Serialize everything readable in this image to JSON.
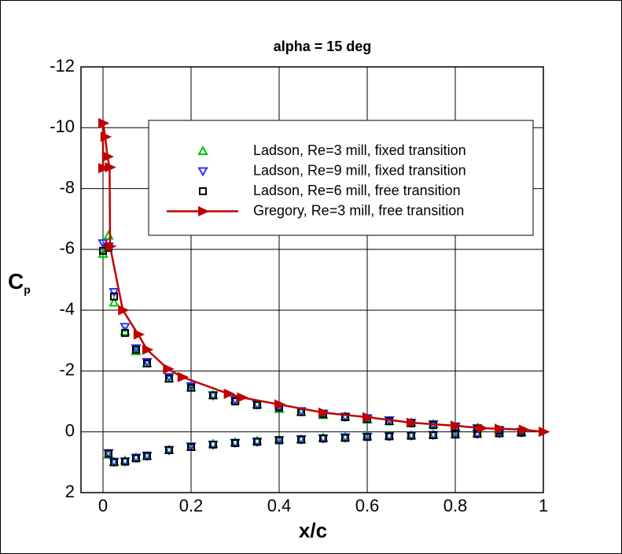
{
  "chart_data": {
    "type": "scatter",
    "title": "alpha = 15 deg",
    "xlabel": "x/c",
    "ylabel": {
      "main": "C",
      "sub": "p"
    },
    "xlim": [
      -0.05,
      1.0
    ],
    "xticks": [
      0,
      0.2,
      0.4,
      0.6,
      0.8,
      1
    ],
    "ylim": [
      -12,
      2
    ],
    "y_reversed": true,
    "yticks": [
      -12,
      -10,
      -8,
      -6,
      -4,
      -2,
      0,
      2
    ],
    "grid": true,
    "legend": "upper right",
    "series": [
      {
        "name": "Ladson, Re=3 mill, fixed transition",
        "color": "#00c000",
        "marker": "triangle-up",
        "style": "markers",
        "x": [
          0,
          0.0125,
          0.025,
          0.05,
          0.075,
          0.1,
          0.15,
          0.2,
          0.25,
          0.3,
          0.35,
          0.4,
          0.45,
          0.5,
          0.55,
          0.6,
          0.65,
          0.7,
          0.75,
          0.8,
          0.85,
          0.9,
          0.95,
          0.0125,
          0.025,
          0.05,
          0.075,
          0.1,
          0.15,
          0.2,
          0.25,
          0.3,
          0.35,
          0.4,
          0.45,
          0.5,
          0.55,
          0.6,
          0.65,
          0.7,
          0.75,
          0.8,
          0.85,
          0.9,
          0.95
        ],
        "values": [
          -5.85,
          -6.45,
          -4.25,
          -3.3,
          -2.65,
          -2.25,
          -1.75,
          -1.45,
          -1.2,
          -1.05,
          -0.9,
          -0.75,
          -0.65,
          -0.55,
          -0.5,
          -0.4,
          -0.35,
          -0.3,
          -0.25,
          -0.15,
          -0.1,
          -0.05,
          0.0,
          0.75,
          1.0,
          0.95,
          0.85,
          0.8,
          0.6,
          0.5,
          0.4,
          0.35,
          0.3,
          0.25,
          0.25,
          0.2,
          0.18,
          0.15,
          0.13,
          0.12,
          0.1,
          0.08,
          0.06,
          0.04,
          0.02
        ]
      },
      {
        "name": "Ladson, Re=9 mill, fixed transition",
        "color": "#3030ff",
        "marker": "triangle-down",
        "style": "markers",
        "x": [
          0,
          0.0125,
          0.025,
          0.05,
          0.075,
          0.1,
          0.15,
          0.2,
          0.25,
          0.3,
          0.35,
          0.4,
          0.45,
          0.5,
          0.55,
          0.6,
          0.65,
          0.7,
          0.75,
          0.8,
          0.85,
          0.9,
          0.95,
          0.0125,
          0.025,
          0.05,
          0.075,
          0.1,
          0.15,
          0.2,
          0.25,
          0.3,
          0.35,
          0.4,
          0.45,
          0.5,
          0.55,
          0.6,
          0.65,
          0.7,
          0.75,
          0.8,
          0.85,
          0.9,
          0.95
        ],
        "values": [
          -6.2,
          -6.1,
          -4.6,
          -3.45,
          -2.75,
          -2.3,
          -1.8,
          -1.5,
          -1.2,
          -1.05,
          -0.9,
          -0.8,
          -0.68,
          -0.6,
          -0.5,
          -0.45,
          -0.38,
          -0.3,
          -0.25,
          -0.18,
          -0.12,
          -0.06,
          0.0,
          0.7,
          0.98,
          0.97,
          0.85,
          0.78,
          0.6,
          0.48,
          0.42,
          0.36,
          0.32,
          0.27,
          0.24,
          0.21,
          0.18,
          0.16,
          0.14,
          0.12,
          0.1,
          0.08,
          0.06,
          0.04,
          0.02
        ]
      },
      {
        "name": "Ladson, Re=6 mill, free transition",
        "color": "#000000",
        "marker": "square",
        "style": "markers",
        "x": [
          0,
          0.0125,
          0.025,
          0.05,
          0.075,
          0.1,
          0.15,
          0.2,
          0.25,
          0.3,
          0.35,
          0.4,
          0.45,
          0.5,
          0.55,
          0.6,
          0.65,
          0.7,
          0.75,
          0.8,
          0.85,
          0.9,
          0.95,
          0.0125,
          0.025,
          0.05,
          0.075,
          0.1,
          0.15,
          0.2,
          0.25,
          0.3,
          0.35,
          0.4,
          0.45,
          0.5,
          0.55,
          0.6,
          0.65,
          0.7,
          0.75,
          0.8,
          0.85,
          0.9,
          0.95
        ],
        "values": [
          -5.95,
          -6.05,
          -4.45,
          -3.25,
          -2.7,
          -2.25,
          -1.75,
          -1.45,
          -1.2,
          -1.0,
          -0.88,
          -0.8,
          -0.65,
          -0.58,
          -0.48,
          -0.42,
          -0.35,
          -0.28,
          -0.22,
          -0.15,
          -0.1,
          -0.05,
          0.0,
          0.72,
          1.0,
          0.98,
          0.87,
          0.8,
          0.6,
          0.5,
          0.42,
          0.37,
          0.33,
          0.28,
          0.26,
          0.22,
          0.2,
          0.17,
          0.15,
          0.13,
          0.11,
          0.09,
          0.07,
          0.05,
          0.03
        ]
      },
      {
        "name": "Gregory, Re=3 mill, free transition",
        "color": "#c00000",
        "marker": "triangle-right",
        "style": "line",
        "x": [
          0,
          0,
          0.005,
          0.01,
          0.015,
          0.016,
          0.045,
          0.08,
          0.1,
          0.147,
          0.18,
          0.285,
          0.315,
          0.4,
          0.5,
          0.6,
          0.7,
          0.8,
          0.86,
          0.9,
          0.955,
          1.0
        ],
        "values": [
          -8.67,
          -10.15,
          -9.7,
          -9.05,
          -8.7,
          -6.1,
          -4.0,
          -3.2,
          -2.7,
          -2.07,
          -1.8,
          -1.25,
          -1.13,
          -0.9,
          -0.63,
          -0.48,
          -0.3,
          -0.2,
          -0.12,
          -0.1,
          -0.07,
          0
        ]
      }
    ]
  }
}
